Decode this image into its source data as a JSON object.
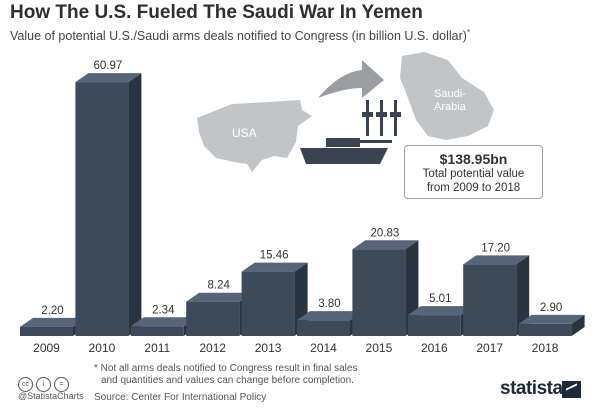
{
  "title": "How The U.S. Fueled The Saudi War In Yemen",
  "subtitle": "Value of potential U.S./Saudi arms deals notified to Congress (in billion U.S. dollar)",
  "subtitle_mark": "*",
  "map": {
    "usa_label": "USA",
    "saudi_label_line1": "Saudi-",
    "saudi_label_line2": "Arabia"
  },
  "callout": {
    "value": "$138.95bn",
    "line1": "Total potential value",
    "line2": "from 2009 to 2018"
  },
  "chart_data": {
    "type": "bar",
    "categories": [
      "2009",
      "2010",
      "2011",
      "2012",
      "2013",
      "2014",
      "2015",
      "2016",
      "2017",
      "2018"
    ],
    "values": [
      2.2,
      60.97,
      2.34,
      8.24,
      15.46,
      3.8,
      20.83,
      5.01,
      17.2,
      2.9
    ],
    "value_labels": [
      "2.20",
      "60.97",
      "2.34",
      "8.24",
      "15.46",
      "3.80",
      "20.83",
      "5.01",
      "17.20",
      "2.90"
    ],
    "ylim": [
      0,
      61
    ],
    "xlabel": "",
    "ylabel": "",
    "bar_color": "#3d4a59",
    "bar_top_color": "#56657a",
    "bar_side_color": "#2a3440"
  },
  "footer": {
    "note_line1": "* Not all arms deals notified to Congress result in final sales",
    "note_line2": "and quantities and values can change before completion.",
    "source": "Source: Center For International Policy",
    "handle": "@StatistaCharts",
    "logo": "statista"
  },
  "colors": {
    "map_gray": "#c2c5c8",
    "arrow_gray": "#9a9da1",
    "weapon_dark": "#3b4350"
  }
}
